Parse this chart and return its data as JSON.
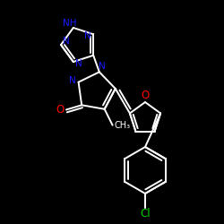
{
  "background_color": "#000000",
  "bond_color": "#ffffff",
  "N_color": "#1a1aff",
  "O_color": "#ff0000",
  "Cl_color": "#00cc00",
  "bond_width": 1.4,
  "fig_w": 2.5,
  "fig_h": 2.5,
  "dpi": 100,
  "xlim": [
    0,
    250
  ],
  "ylim": [
    0,
    250
  ]
}
